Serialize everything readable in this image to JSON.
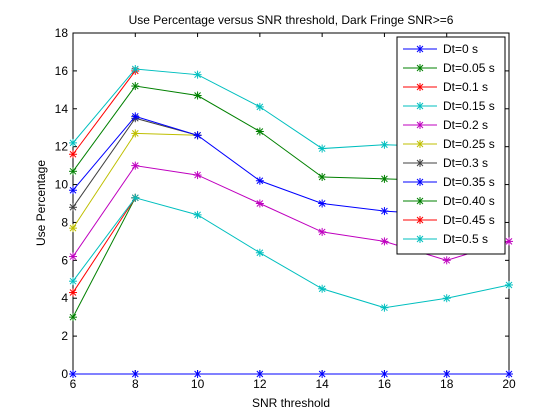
{
  "chart_data": {
    "type": "line",
    "title": "Use Percentage versus SNR threshold, Dark Fringe SNR>=6",
    "xlabel": "SNR threshold",
    "ylabel": "Use Percentage",
    "xlim": [
      6,
      20
    ],
    "ylim": [
      0,
      18
    ],
    "xticks": [
      6,
      8,
      10,
      12,
      14,
      16,
      18,
      20
    ],
    "yticks": [
      0,
      2,
      4,
      6,
      8,
      10,
      12,
      14,
      16,
      18
    ],
    "grid": false,
    "legend_position": "top-right",
    "x": [
      6,
      8,
      10,
      12,
      14,
      16,
      18,
      20
    ],
    "series": [
      {
        "name": "Dt=0 s",
        "color": "#0000ff",
        "values": [
          0,
          0,
          0,
          0,
          0,
          0,
          0,
          0
        ]
      },
      {
        "name": "Dt=0.05 s",
        "color": "#008000",
        "values": [
          3.0,
          9.3,
          null,
          null,
          null,
          null,
          null,
          null
        ]
      },
      {
        "name": "Dt=0.1 s",
        "color": "#ff0000",
        "values": [
          4.3,
          9.3,
          null,
          null,
          null,
          null,
          null,
          null
        ]
      },
      {
        "name": "Dt=0.15 s",
        "color": "#00bfbf",
        "values": [
          4.9,
          9.3,
          8.4,
          6.4,
          4.5,
          3.5,
          4.0,
          4.7
        ]
      },
      {
        "name": "Dt=0.2 s",
        "color": "#bf00bf",
        "values": [
          6.2,
          11.0,
          10.5,
          9.0,
          7.5,
          7.0,
          6.0,
          7.0
        ]
      },
      {
        "name": "Dt=0.25 s",
        "color": "#bfbf00",
        "values": [
          7.7,
          12.7,
          12.6,
          null,
          null,
          null,
          null,
          null
        ]
      },
      {
        "name": "Dt=0.3 s",
        "color": "#404040",
        "values": [
          8.8,
          13.5,
          12.6,
          null,
          null,
          null,
          null,
          null
        ]
      },
      {
        "name": "Dt=0.35 s",
        "color": "#0000ff",
        "values": [
          9.7,
          13.6,
          12.6,
          10.2,
          9.0,
          8.6,
          8.4,
          null
        ]
      },
      {
        "name": "Dt=0.40 s",
        "color": "#008000",
        "values": [
          10.7,
          15.2,
          14.7,
          12.8,
          10.4,
          10.3,
          10.2,
          null
        ]
      },
      {
        "name": "Dt=0.45 s",
        "color": "#ff0000",
        "values": [
          11.6,
          16.0,
          null,
          null,
          null,
          null,
          null,
          null
        ]
      },
      {
        "name": "Dt=0.5 s",
        "color": "#00bfbf",
        "values": [
          12.2,
          16.1,
          15.8,
          14.1,
          11.9,
          12.1,
          12.0,
          null
        ]
      }
    ]
  }
}
